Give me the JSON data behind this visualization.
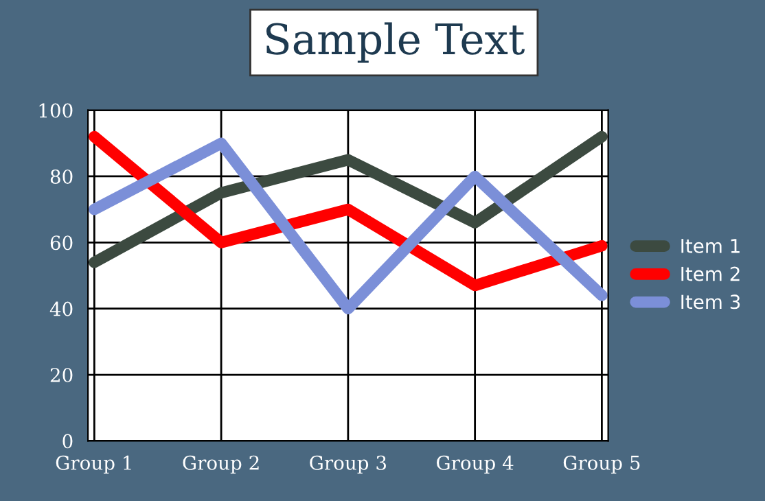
{
  "chart_data": {
    "type": "line",
    "title": "Sample Text",
    "categories": [
      "Group 1",
      "Group 2",
      "Group 3",
      "Group 4",
      "Group 5"
    ],
    "series": [
      {
        "name": "Item 1",
        "color": "#3c4a40",
        "values": [
          54,
          75,
          85,
          66,
          92
        ]
      },
      {
        "name": "Item 2",
        "color": "#ff0000",
        "values": [
          92,
          60,
          70,
          47,
          59
        ]
      },
      {
        "name": "Item 3",
        "color": "#7b8fd8",
        "values": [
          70,
          90,
          40,
          80,
          44
        ]
      }
    ],
    "ylim": [
      0,
      100
    ],
    "yticks": [
      0,
      20,
      40,
      60,
      80,
      100
    ],
    "grid": true,
    "legend": "right",
    "marker": "none",
    "line_style": "solid"
  }
}
